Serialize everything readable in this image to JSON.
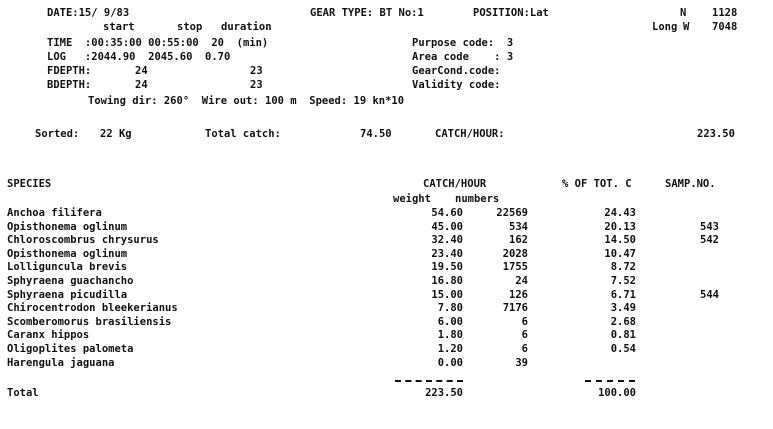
{
  "header": {
    "date": "DATE:15/ 9/83",
    "gear_type": "GEAR TYPE: BT No:1",
    "position_label": "POSITION:Lat",
    "lat_hem": "N",
    "lat_val": "1128",
    "long_label": "Long",
    "long_hem": "W",
    "long_val": "7048",
    "col_start": "start",
    "col_stop": "stop",
    "col_duration": "duration",
    "time_row": "TIME  :00:35:00 00:55:00  20  (min)",
    "log_row": "LOG   :2044.90  2045.60  0.70",
    "fdepth_label": "FDEPTH:",
    "fdepth_start": "24",
    "fdepth_stop": "23",
    "bdepth_label": "BDEPTH:",
    "bdepth_start": "24",
    "bdepth_stop": "23",
    "purpose_code": "Purpose code:  3",
    "area_code": "Area code    : 3",
    "gearcond_code": "GearCond.code:",
    "validity_code": "Validity code:",
    "towing": "Towing dir: 260°  Wire out: 100 m  Speed: 19 kn*10"
  },
  "summary": {
    "sorted_label": "Sorted:",
    "sorted_value": "22 Kg",
    "total_catch_label": "Total catch:",
    "total_catch_value": "74.50",
    "catch_hour_label": "CATCH/HOUR:",
    "catch_hour_value": "223.50"
  },
  "table": {
    "col_species": "SPECIES",
    "col_catch_hour": "CATCH/HOUR",
    "col_weight": "weight",
    "col_numbers": "numbers",
    "col_pct": "% OF TOT. C",
    "col_samp": "SAMP.NO.",
    "rows": [
      {
        "species": "Anchoa filifera",
        "weight": "54.60",
        "numbers": "22569",
        "pct": "24.43",
        "samp": ""
      },
      {
        "species": "Opisthonema oglinum",
        "weight": "45.00",
        "numbers": "534",
        "pct": "20.13",
        "samp": "543"
      },
      {
        "species": "Chloroscombrus chrysurus",
        "weight": "32.40",
        "numbers": "162",
        "pct": "14.50",
        "samp": "542"
      },
      {
        "species": "Opisthonema oglinum",
        "weight": "23.40",
        "numbers": "2028",
        "pct": "10.47",
        "samp": ""
      },
      {
        "species": "Lolliguncula brevis",
        "weight": "19.50",
        "numbers": "1755",
        "pct": "8.72",
        "samp": ""
      },
      {
        "species": "Sphyraena guachancho",
        "weight": "16.80",
        "numbers": "24",
        "pct": "7.52",
        "samp": ""
      },
      {
        "species": "Sphyraena picudilla",
        "weight": "15.00",
        "numbers": "126",
        "pct": "6.71",
        "samp": "544"
      },
      {
        "species": "Chirocentrodon bleekerianus",
        "weight": "7.80",
        "numbers": "7176",
        "pct": "3.49",
        "samp": ""
      },
      {
        "species": "Scomberomorus brasiliensis",
        "weight": "6.00",
        "numbers": "6",
        "pct": "2.68",
        "samp": ""
      },
      {
        "species": "Caranx hippos",
        "weight": "1.80",
        "numbers": "6",
        "pct": "0.81",
        "samp": ""
      },
      {
        "species": "Oligoplites palometa",
        "weight": "1.20",
        "numbers": "6",
        "pct": "0.54",
        "samp": ""
      },
      {
        "species": "Harengula jaguana",
        "weight": "0.00",
        "numbers": "39",
        "pct": "",
        "samp": ""
      }
    ],
    "total_label": "Total",
    "total_weight": "223.50",
    "total_pct": "100.00"
  }
}
